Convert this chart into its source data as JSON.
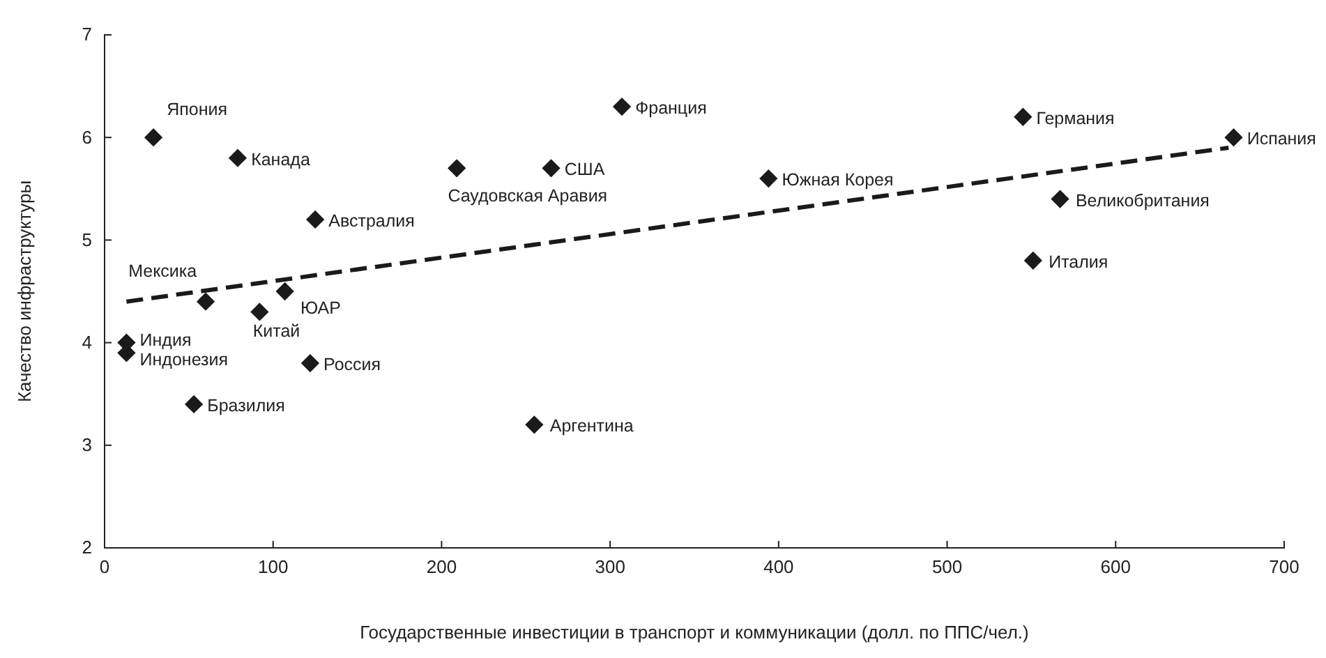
{
  "chart_data": {
    "type": "scatter",
    "xlabel": "Государственные инвестиции в транспорт и коммуникации (долл. по ППС/чел.)",
    "ylabel": "Качество инфраструктуры",
    "xlim": [
      0,
      700
    ],
    "xticks": [
      0,
      100,
      200,
      300,
      400,
      500,
      600,
      700
    ],
    "ylim": [
      2,
      7
    ],
    "yticks": [
      2,
      3,
      4,
      5,
      6,
      7
    ],
    "grid": false,
    "series": [
      {
        "marker": "diamond",
        "color": "#1a1a1a",
        "x": [
          29,
          79,
          125,
          209,
          265,
          307,
          394,
          545,
          670,
          567,
          551,
          60,
          107,
          92,
          13,
          13,
          53,
          122,
          255
        ],
        "values": [
          6.0,
          5.8,
          5.2,
          5.7,
          5.7,
          6.3,
          5.6,
          6.2,
          6.0,
          5.4,
          4.8,
          4.4,
          4.5,
          4.3,
          4.0,
          3.9,
          3.4,
          3.8,
          3.2
        ]
      },
      {
        "type": "line",
        "marker": "none",
        "line_style": "dashed",
        "color": "#1a1a1a",
        "x": [
          13,
          667
        ],
        "values": [
          4.4,
          5.9
        ]
      }
    ],
    "annotations": [
      {
        "text": "Япония",
        "x": 29,
        "y": 6.0
      },
      {
        "text": "Канада",
        "x": 79,
        "y": 5.8
      },
      {
        "text": "Австралия",
        "x": 125,
        "y": 5.2
      },
      {
        "text": "Саудовская Аравия",
        "x": 209,
        "y": 5.7
      },
      {
        "text": "США",
        "x": 265,
        "y": 5.7
      },
      {
        "text": "Франция",
        "x": 307,
        "y": 6.3
      },
      {
        "text": "Южная Корея",
        "x": 394,
        "y": 5.6
      },
      {
        "text": "Германия",
        "x": 545,
        "y": 6.2
      },
      {
        "text": "Испания",
        "x": 670,
        "y": 6.0
      },
      {
        "text": "Великобритания",
        "x": 567,
        "y": 5.4
      },
      {
        "text": "Италия",
        "x": 551,
        "y": 4.8
      },
      {
        "text": "Мексика",
        "x": 60,
        "y": 4.4
      },
      {
        "text": "ЮАР",
        "x": 107,
        "y": 4.5
      },
      {
        "text": "Китай",
        "x": 92,
        "y": 4.3
      },
      {
        "text": "Индия",
        "x": 13,
        "y": 4.0
      },
      {
        "text": "Индонезия",
        "x": 13,
        "y": 3.9
      },
      {
        "text": "Бразилия",
        "x": 53,
        "y": 3.4
      },
      {
        "text": "Россия",
        "x": 122,
        "y": 3.8
      },
      {
        "text": "Аргентина",
        "x": 255,
        "y": 3.2
      }
    ]
  }
}
